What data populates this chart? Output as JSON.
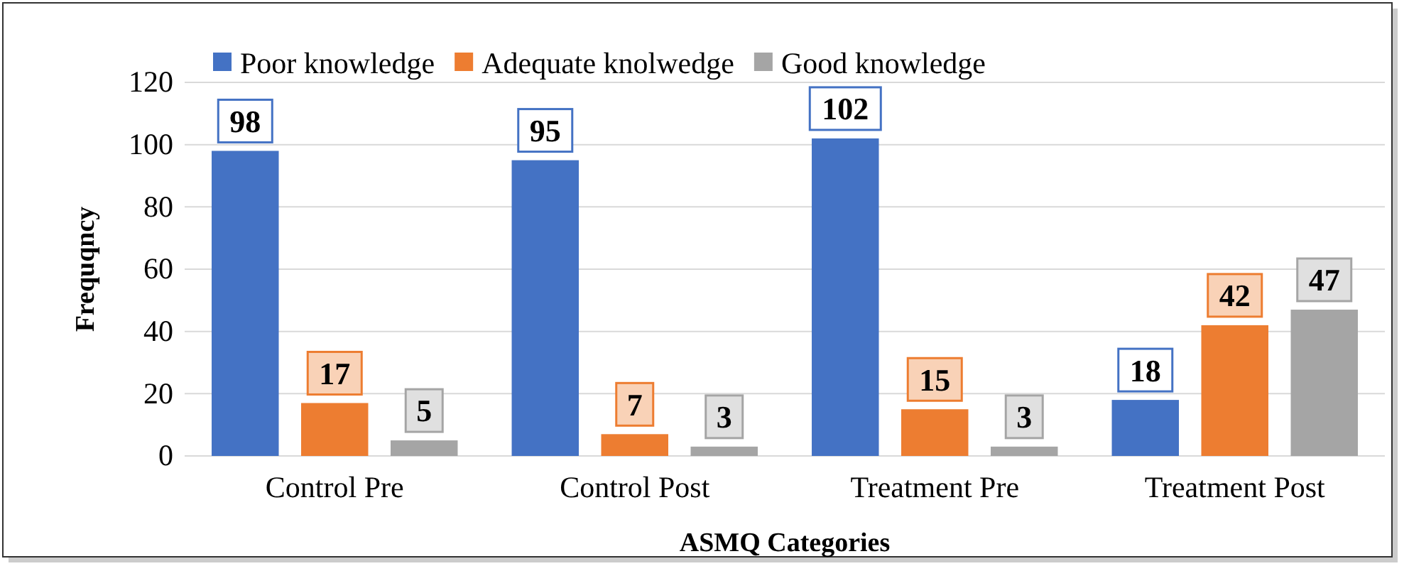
{
  "chart_data": {
    "type": "bar",
    "xlabel": "ASMQ Categories",
    "ylabel": "Frequqncy",
    "categories": [
      "Control Pre",
      "Control Post",
      "Treatment Pre",
      "Treatment Post"
    ],
    "series": [
      {
        "name": "Poor knowledge",
        "color": "#4472c4",
        "values": [
          98,
          95,
          102,
          18
        ]
      },
      {
        "name": "Adequate knolwedge",
        "color": "#ed7d31",
        "values": [
          17,
          7,
          15,
          42
        ]
      },
      {
        "name": "Good knowledge",
        "color": "#a5a5a5",
        "values": [
          5,
          3,
          3,
          47
        ]
      }
    ],
    "ylim": [
      0,
      120
    ],
    "yticks": [
      0,
      20,
      40,
      60,
      80,
      100,
      120
    ],
    "grid": "y",
    "legend": "top",
    "data_labels": true
  }
}
